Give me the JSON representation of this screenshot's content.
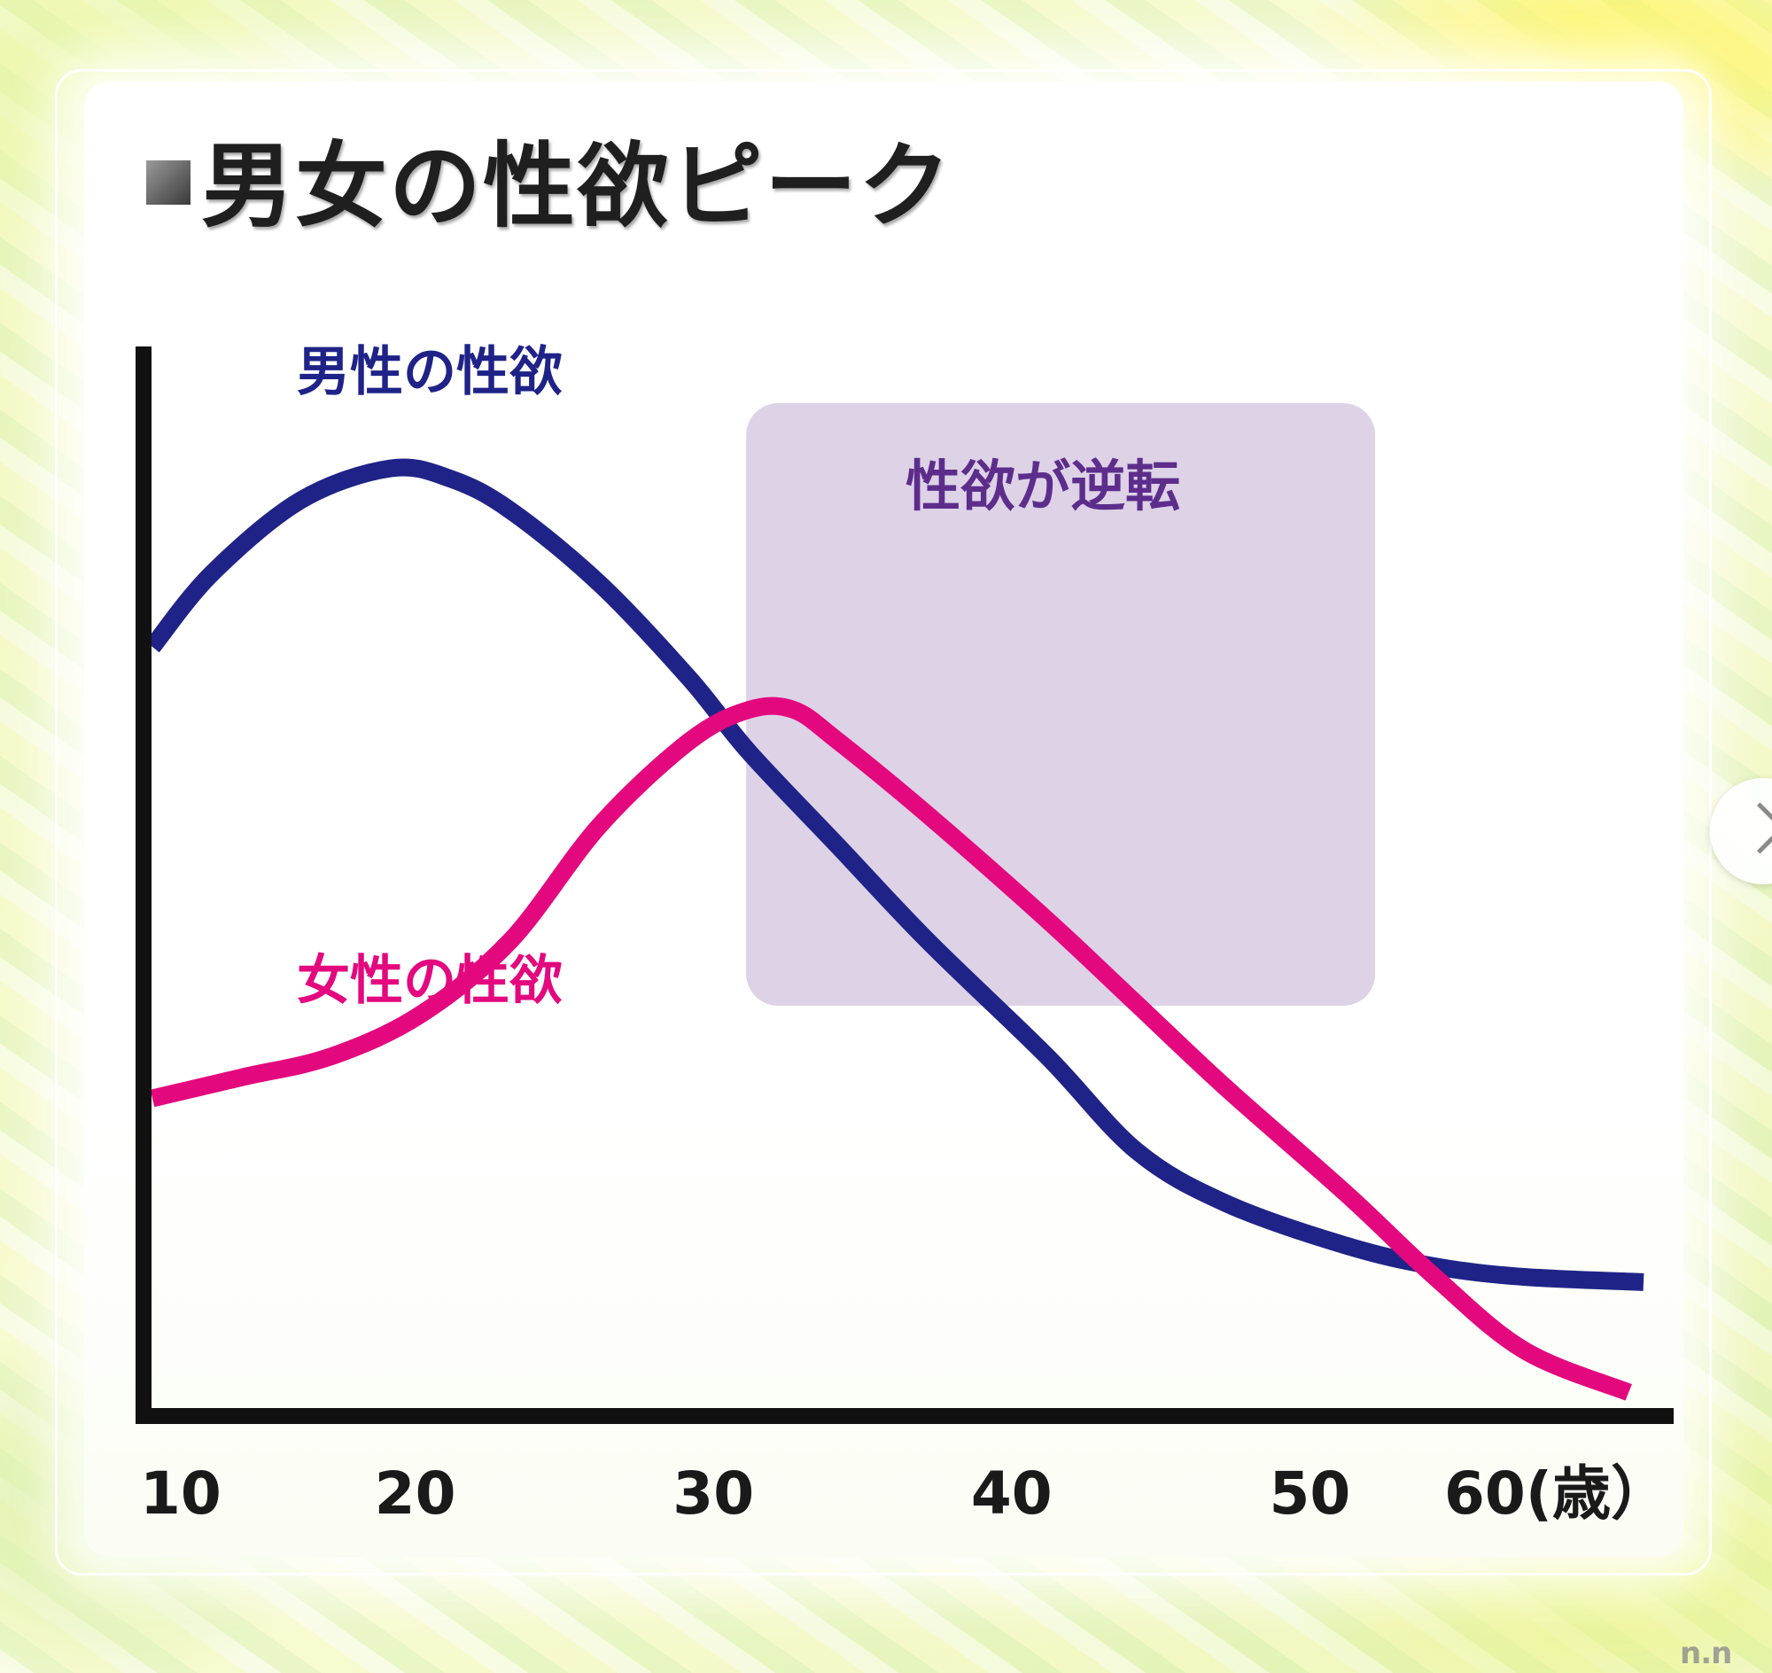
{
  "title": "男女の性欲ピーク",
  "chart_data": {
    "type": "line",
    "title": "男女の性欲ピーク",
    "x_ticks": [
      "10",
      "20",
      "30",
      "40",
      "50",
      "60(歳）"
    ],
    "xlim": [
      10,
      60
    ],
    "series": [
      {
        "name": "男性の性欲",
        "color": "#1f2388",
        "x": [
          10,
          12,
          15,
          18,
          20,
          22,
          25,
          28,
          30,
          33,
          36,
          40,
          43,
          46,
          50,
          53,
          56,
          60
        ],
        "y": [
          73,
          80,
          87,
          90,
          89,
          86,
          79,
          70,
          63,
          54,
          45,
          34,
          25,
          20,
          16,
          14,
          13,
          12.5
        ]
      },
      {
        "name": "女性の性欲",
        "color": "#e4087f",
        "x": [
          10,
          13,
          16,
          19,
          22,
          25,
          28,
          30,
          31.5,
          33,
          36,
          40,
          43,
          46,
          50,
          53,
          56,
          59.5
        ],
        "y": [
          30,
          32,
          34,
          38,
          45,
          56,
          64,
          67,
          67,
          64,
          57,
          47,
          39,
          31,
          21,
          13,
          6,
          2
        ]
      }
    ],
    "annotations": [
      {
        "text": "性欲が逆転",
        "x_range": [
          30,
          51
        ],
        "color": "#ddd2e6"
      }
    ],
    "grid": false,
    "legend": "inline-labels"
  },
  "next_icon": "chevron-right-icon",
  "logo": "n.n"
}
